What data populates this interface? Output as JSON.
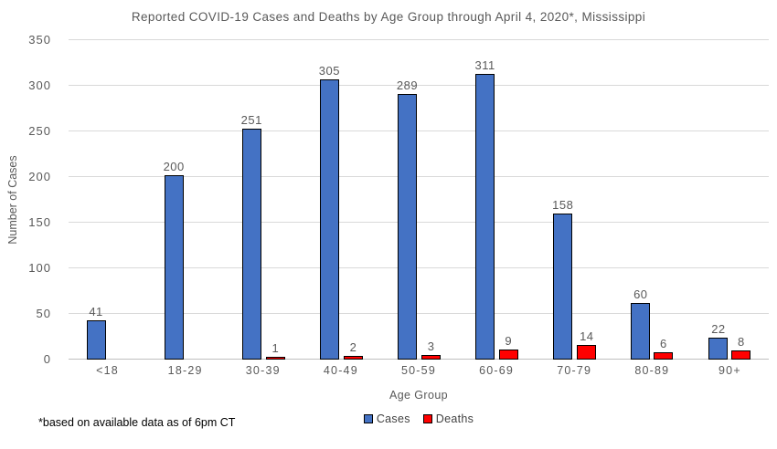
{
  "title": "Reported COVID-19 Cases and Deaths by Age Group through April 4, 2020*, Mississippi",
  "footnote": "*based on available data as of 6pm CT",
  "colors": {
    "cases": "#4472C4",
    "deaths": "#FF0000",
    "bar_border": "#000000",
    "gridline": "#D9D9D9",
    "axis_line": "#BFBFBF",
    "text": "#595959"
  },
  "chart_data": {
    "type": "bar",
    "title": "Reported COVID-19 Cases and Deaths by Age Group through April 4, 2020*, Mississippi",
    "xlabel": "Age Group",
    "ylabel": "Number of Cases",
    "categories": [
      "<18",
      "18-29",
      "30-39",
      "40-49",
      "50-59",
      "60-69",
      "70-79",
      "80-89",
      "90+"
    ],
    "series": [
      {
        "name": "Cases",
        "color": "#4472C4",
        "values": [
          41,
          200,
          251,
          305,
          289,
          311,
          158,
          60,
          22
        ]
      },
      {
        "name": "Deaths",
        "color": "#FF0000",
        "values": [
          0,
          0,
          1,
          2,
          3,
          9,
          14,
          6,
          8
        ]
      }
    ],
    "ylim": [
      0,
      350
    ],
    "ytick_interval": 50,
    "yticks": [
      0,
      50,
      100,
      150,
      200,
      250,
      300,
      350
    ],
    "grid": true,
    "data_labels": true,
    "hide_zero_labels": true,
    "legend_position": "bottom"
  }
}
